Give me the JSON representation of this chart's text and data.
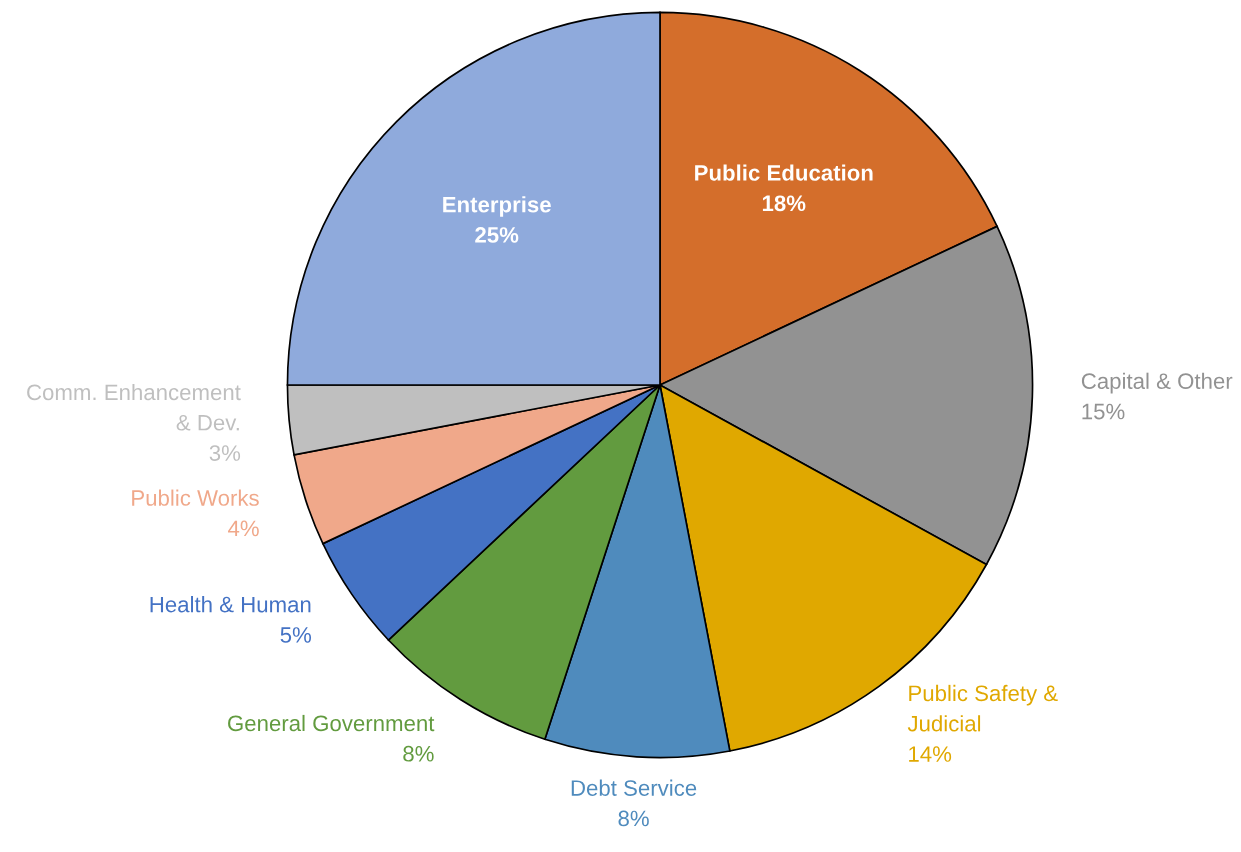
{
  "chart_data": {
    "type": "pie",
    "categories": [
      "Public Education",
      "Capital & Other",
      "Public Safety & Judicial",
      "Debt Service",
      "General Government",
      "Health & Human",
      "Public Works",
      "Comm. Enhancement & Dev.",
      "Enterprise"
    ],
    "values": [
      18,
      15,
      14,
      8,
      8,
      5,
      4,
      3,
      25
    ],
    "value_labels": [
      "18%",
      "15%",
      "14%",
      "8%",
      "8%",
      "5%",
      "4%",
      "3%",
      "25%"
    ],
    "colors": [
      "#d46e2b",
      "#929292",
      "#e0a800",
      "#4f8bbd",
      "#629b3f",
      "#4472c4",
      "#f0a88a",
      "#bfbfbf",
      "#8faadc"
    ]
  }
}
